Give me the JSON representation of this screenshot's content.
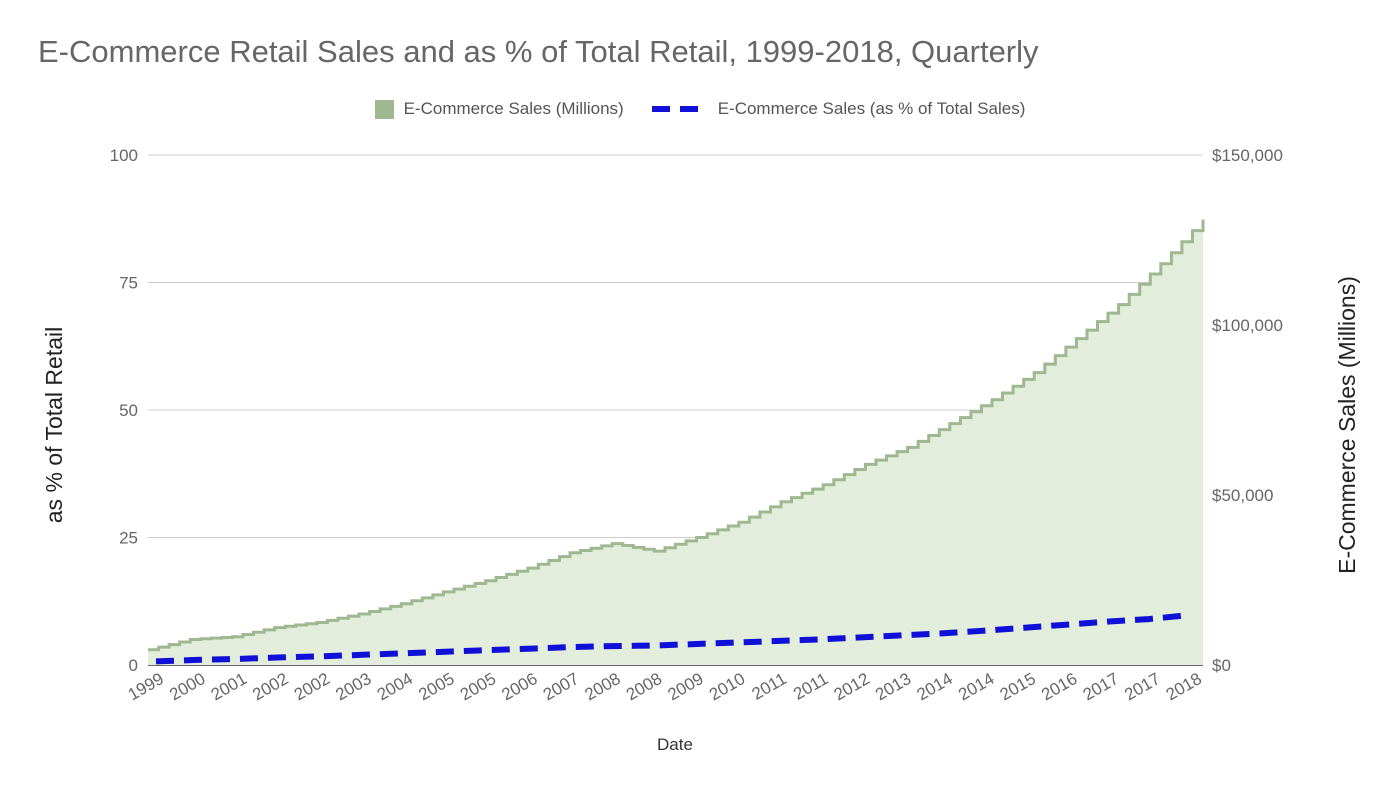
{
  "chart_data": {
    "type": "area",
    "title": "E-Commerce Retail Sales and as % of Total Retail, 1999-2018, Quarterly",
    "xlabel": "Date",
    "ylabel_left": "as % of Total Retail",
    "ylabel_right": "E-Commerce Sales (Millions)",
    "y_left_ticks": [
      "0",
      "25",
      "50",
      "75",
      "100"
    ],
    "y_left_range": [
      0,
      100
    ],
    "y_right_ticks": [
      "$0",
      "$50,000",
      "$100,000",
      "$150,000"
    ],
    "y_right_range": [
      0,
      150000
    ],
    "x_tick_labels": [
      "1999",
      "2000",
      "2001",
      "2002",
      "2002",
      "2003",
      "2004",
      "2005",
      "2005",
      "2006",
      "2007",
      "2008",
      "2008",
      "2009",
      "2010",
      "2011",
      "2011",
      "2012",
      "2013",
      "2014",
      "2014",
      "2015",
      "2016",
      "2017",
      "2017",
      "2018"
    ],
    "grid": true,
    "legend_position": "top",
    "series": [
      {
        "name": "E-Commerce Sales (Millions)",
        "type": "area",
        "axis": "right",
        "color": "#9fb891",
        "fill": "#e2eedb",
        "points": [
          [
            "1999",
            4500
          ],
          [
            "2000",
            7500
          ],
          [
            "2001",
            8300
          ],
          [
            "2002",
            11000
          ],
          [
            "2002",
            12500
          ],
          [
            "2003",
            15000
          ],
          [
            "2004",
            18000
          ],
          [
            "2005",
            21500
          ],
          [
            "2005",
            24800
          ],
          [
            "2006",
            28500
          ],
          [
            "2007",
            33000
          ],
          [
            "2008",
            35700
          ],
          [
            "2008",
            33500
          ],
          [
            "2009",
            37500
          ],
          [
            "2010",
            42000
          ],
          [
            "2011",
            48000
          ],
          [
            "2011",
            53000
          ],
          [
            "2012",
            59000
          ],
          [
            "2013",
            64000
          ],
          [
            "2014",
            71000
          ],
          [
            "2014",
            78000
          ],
          [
            "2015",
            86000
          ],
          [
            "2016",
            96000
          ],
          [
            "2017",
            106000
          ],
          [
            "2017",
            118000
          ],
          [
            "2018",
            131000
          ]
        ]
      },
      {
        "name": "E-Commerce Sales (as % of Total Sales)",
        "type": "line",
        "axis": "left",
        "color": "#1010d8",
        "dashed": true,
        "points": [
          [
            "1999",
            0.7
          ],
          [
            "2000",
            1.0
          ],
          [
            "2001",
            1.2
          ],
          [
            "2002",
            1.5
          ],
          [
            "2002",
            1.7
          ],
          [
            "2003",
            2.0
          ],
          [
            "2004",
            2.3
          ],
          [
            "2005",
            2.6
          ],
          [
            "2005",
            2.9
          ],
          [
            "2006",
            3.2
          ],
          [
            "2007",
            3.5
          ],
          [
            "2008",
            3.7
          ],
          [
            "2008",
            3.8
          ],
          [
            "2009",
            4.1
          ],
          [
            "2010",
            4.4
          ],
          [
            "2011",
            4.7
          ],
          [
            "2011",
            5.0
          ],
          [
            "2012",
            5.4
          ],
          [
            "2013",
            5.8
          ],
          [
            "2014",
            6.2
          ],
          [
            "2014",
            6.7
          ],
          [
            "2015",
            7.3
          ],
          [
            "2016",
            7.9
          ],
          [
            "2017",
            8.5
          ],
          [
            "2017",
            9.0
          ],
          [
            "2018",
            9.8
          ]
        ]
      }
    ]
  }
}
